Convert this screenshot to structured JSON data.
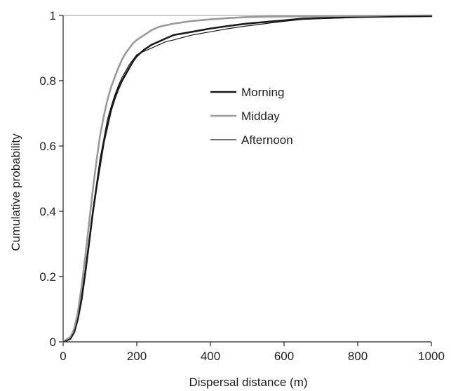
{
  "chart_data": {
    "type": "line",
    "title": "",
    "xlabel": "Dispersal distance (m)",
    "ylabel": "Cumulative probability",
    "xlim": [
      0,
      1000
    ],
    "ylim": [
      0,
      1
    ],
    "x_ticks": [
      "0",
      "200",
      "400",
      "600",
      "800",
      "1000"
    ],
    "y_ticks": [
      "0",
      "0.2",
      "0.4",
      "0.6",
      "0.8",
      "1"
    ],
    "grid": false,
    "legend_position": "right",
    "series": [
      {
        "name": "Morning",
        "color": "#1a1a1a",
        "line": "thick",
        "x": [
          0,
          20,
          30,
          40,
          50,
          60,
          70,
          80,
          90,
          100,
          110,
          120,
          130,
          140,
          150,
          160,
          170,
          180,
          190,
          200,
          220,
          240,
          260,
          280,
          300,
          350,
          400,
          450,
          500,
          550,
          600,
          650,
          700,
          800,
          900,
          1000
        ],
        "y": [
          0,
          0.01,
          0.03,
          0.07,
          0.13,
          0.21,
          0.3,
          0.39,
          0.47,
          0.54,
          0.61,
          0.66,
          0.71,
          0.745,
          0.775,
          0.8,
          0.82,
          0.84,
          0.86,
          0.875,
          0.895,
          0.91,
          0.92,
          0.93,
          0.94,
          0.95,
          0.96,
          0.968,
          0.975,
          0.98,
          0.985,
          0.99,
          0.992,
          0.995,
          0.997,
          0.998
        ]
      },
      {
        "name": "Midday",
        "color": "#9a9a9a",
        "line": "thick",
        "x": [
          0,
          20,
          30,
          40,
          50,
          60,
          70,
          80,
          90,
          100,
          110,
          120,
          130,
          140,
          150,
          160,
          170,
          180,
          190,
          200,
          220,
          240,
          260,
          280,
          300,
          350,
          400,
          450,
          500,
          600,
          700,
          800,
          1000
        ],
        "y": [
          0,
          0.015,
          0.04,
          0.09,
          0.17,
          0.26,
          0.36,
          0.46,
          0.55,
          0.63,
          0.69,
          0.74,
          0.78,
          0.81,
          0.84,
          0.865,
          0.885,
          0.9,
          0.915,
          0.925,
          0.94,
          0.955,
          0.965,
          0.97,
          0.975,
          0.983,
          0.988,
          0.992,
          0.995,
          0.997,
          0.998,
          0.999,
          1.0
        ]
      },
      {
        "name": "Afternoon",
        "color": "#1a1a1a",
        "line": "thin",
        "x": [
          0,
          20,
          30,
          40,
          50,
          60,
          70,
          80,
          90,
          100,
          110,
          120,
          130,
          140,
          150,
          160,
          170,
          180,
          190,
          200,
          220,
          240,
          260,
          280,
          300,
          350,
          400,
          450,
          500,
          550,
          600,
          650,
          700,
          800,
          900,
          1000
        ],
        "y": [
          0,
          0.01,
          0.03,
          0.07,
          0.14,
          0.22,
          0.31,
          0.4,
          0.48,
          0.56,
          0.62,
          0.68,
          0.72,
          0.755,
          0.785,
          0.81,
          0.83,
          0.85,
          0.865,
          0.88,
          0.89,
          0.9,
          0.91,
          0.92,
          0.925,
          0.94,
          0.95,
          0.96,
          0.968,
          0.975,
          0.982,
          0.988,
          0.99,
          0.994,
          0.997,
          0.998
        ]
      }
    ]
  }
}
